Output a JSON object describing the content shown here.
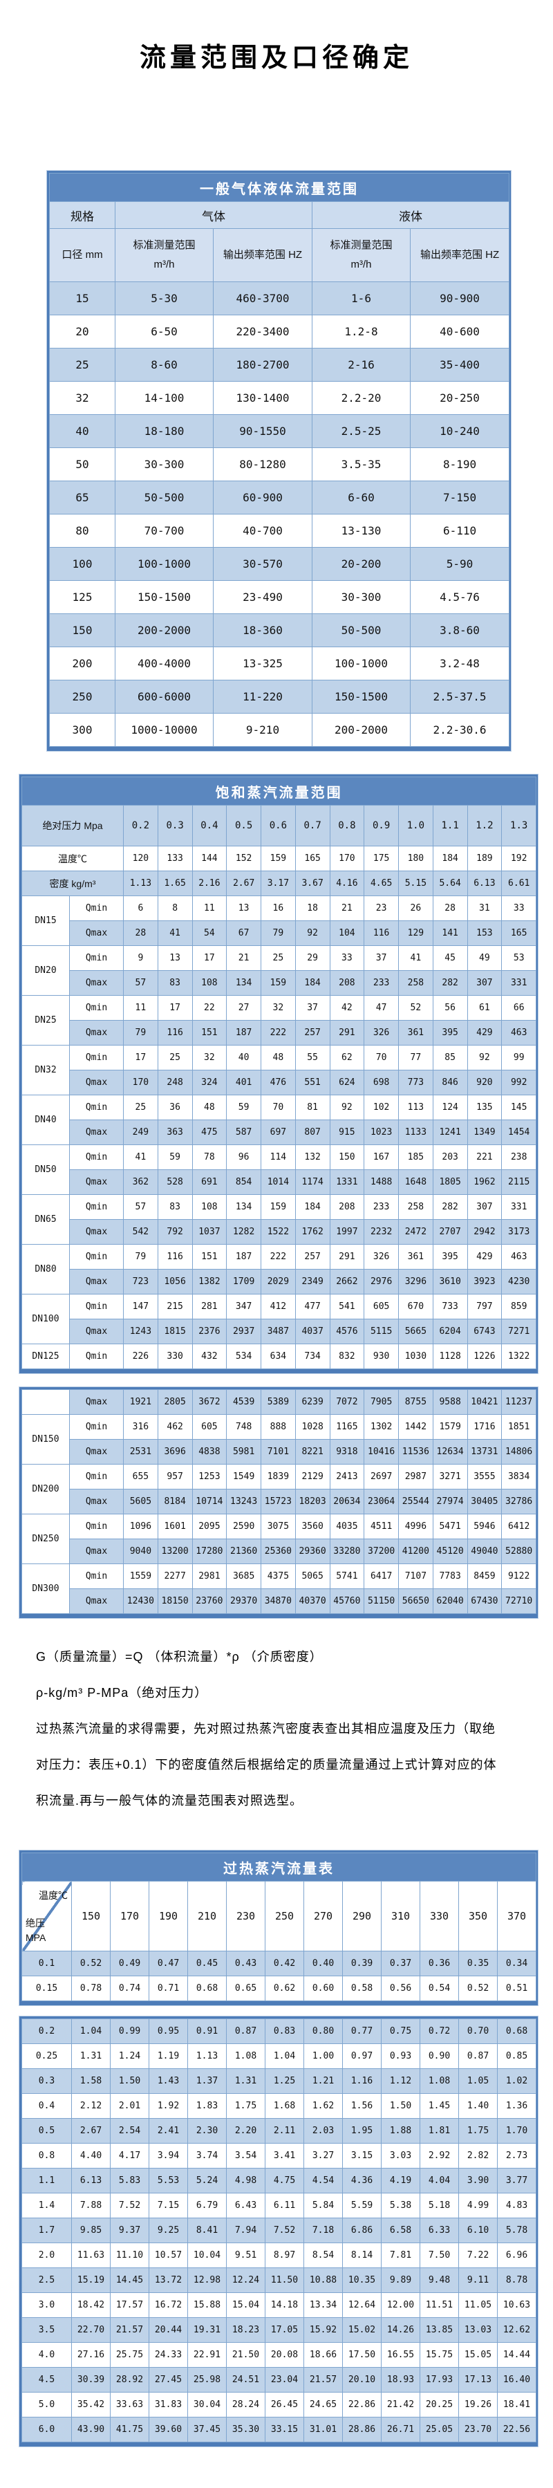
{
  "page_title": "流量范围及口径确定",
  "table1": {
    "title": "一般气体液体流量范围",
    "header": {
      "spec": "规格",
      "gas": "气体",
      "liquid": "液体",
      "diameter": "口径 mm",
      "std_label": "标准测量范围",
      "std_unit": "m³/h",
      "freq_label": "输出频率范围 HZ"
    },
    "rows": [
      [
        "15",
        "5-30",
        "460-3700",
        "1-6",
        "90-900"
      ],
      [
        "20",
        "6-50",
        "220-3400",
        "1.2-8",
        "40-600"
      ],
      [
        "25",
        "8-60",
        "180-2700",
        "2-16",
        "35-400"
      ],
      [
        "32",
        "14-100",
        "130-1400",
        "2.2-20",
        "20-250"
      ],
      [
        "40",
        "18-180",
        "90-1550",
        "2.5-25",
        "10-240"
      ],
      [
        "50",
        "30-300",
        "80-1280",
        "3.5-35",
        "8-190"
      ],
      [
        "65",
        "50-500",
        "60-900",
        "6-60",
        "7-150"
      ],
      [
        "80",
        "70-700",
        "40-700",
        "13-130",
        "6-110"
      ],
      [
        "100",
        "100-1000",
        "30-570",
        "20-200",
        "5-90"
      ],
      [
        "125",
        "150-1500",
        "23-490",
        "30-300",
        "4.5-76"
      ],
      [
        "150",
        "200-2000",
        "18-360",
        "50-500",
        "3.8-60"
      ],
      [
        "200",
        "400-4000",
        "13-325",
        "100-1000",
        "3.2-48"
      ],
      [
        "250",
        "600-6000",
        "11-220",
        "150-1500",
        "2.5-37.5"
      ],
      [
        "300",
        "1000-10000",
        "9-210",
        "200-2000",
        "2.2-30.6"
      ]
    ]
  },
  "table2": {
    "title": "饱和蒸汽流量范围",
    "pressure_label": "绝对压力 Mpa",
    "pressures": [
      "0.2",
      "0.3",
      "0.4",
      "0.5",
      "0.6",
      "0.7",
      "0.8",
      "0.9",
      "1.0",
      "1.1",
      "1.2",
      "1.3"
    ],
    "temp_label": "温度℃",
    "temps": [
      "120",
      "133",
      "144",
      "152",
      "159",
      "165",
      "170",
      "175",
      "180",
      "184",
      "189",
      "192"
    ],
    "density_label": "密度 kg/m³",
    "densities": [
      "1.13",
      "1.65",
      "2.16",
      "2.67",
      "3.17",
      "3.67",
      "4.16",
      "4.65",
      "5.15",
      "5.64",
      "6.13",
      "6.61"
    ],
    "qmin_label": "Qmin",
    "qmax_label": "Qmax",
    "block1": [
      {
        "dn": "DN15",
        "qmin": [
          "6",
          "8",
          "11",
          "13",
          "16",
          "18",
          "21",
          "23",
          "26",
          "28",
          "31",
          "33"
        ],
        "qmax": [
          "28",
          "41",
          "54",
          "67",
          "79",
          "92",
          "104",
          "116",
          "129",
          "141",
          "153",
          "165"
        ]
      },
      {
        "dn": "DN20",
        "qmin": [
          "9",
          "13",
          "17",
          "21",
          "25",
          "29",
          "33",
          "37",
          "41",
          "45",
          "49",
          "53"
        ],
        "qmax": [
          "57",
          "83",
          "108",
          "134",
          "159",
          "184",
          "208",
          "233",
          "258",
          "282",
          "307",
          "331"
        ]
      },
      {
        "dn": "DN25",
        "qmin": [
          "11",
          "17",
          "22",
          "27",
          "32",
          "37",
          "42",
          "47",
          "52",
          "56",
          "61",
          "66"
        ],
        "qmax": [
          "79",
          "116",
          "151",
          "187",
          "222",
          "257",
          "291",
          "326",
          "361",
          "395",
          "429",
          "463"
        ]
      },
      {
        "dn": "DN32",
        "qmin": [
          "17",
          "25",
          "32",
          "40",
          "48",
          "55",
          "62",
          "70",
          "77",
          "85",
          "92",
          "99"
        ],
        "qmax": [
          "170",
          "248",
          "324",
          "401",
          "476",
          "551",
          "624",
          "698",
          "773",
          "846",
          "920",
          "992"
        ]
      },
      {
        "dn": "DN40",
        "qmin": [
          "25",
          "36",
          "48",
          "59",
          "70",
          "81",
          "92",
          "102",
          "113",
          "124",
          "135",
          "145"
        ],
        "qmax": [
          "249",
          "363",
          "475",
          "587",
          "697",
          "807",
          "915",
          "1023",
          "1133",
          "1241",
          "1349",
          "1454"
        ]
      },
      {
        "dn": "DN50",
        "qmin": [
          "41",
          "59",
          "78",
          "96",
          "114",
          "132",
          "150",
          "167",
          "185",
          "203",
          "221",
          "238"
        ],
        "qmax": [
          "362",
          "528",
          "691",
          "854",
          "1014",
          "1174",
          "1331",
          "1488",
          "1648",
          "1805",
          "1962",
          "2115"
        ]
      },
      {
        "dn": "DN65",
        "qmin": [
          "57",
          "83",
          "108",
          "134",
          "159",
          "184",
          "208",
          "233",
          "258",
          "282",
          "307",
          "331"
        ],
        "qmax": [
          "542",
          "792",
          "1037",
          "1282",
          "1522",
          "1762",
          "1997",
          "2232",
          "2472",
          "2707",
          "2942",
          "3173"
        ]
      },
      {
        "dn": "DN80",
        "qmin": [
          "79",
          "116",
          "151",
          "187",
          "222",
          "257",
          "291",
          "326",
          "361",
          "395",
          "429",
          "463"
        ],
        "qmax": [
          "723",
          "1056",
          "1382",
          "1709",
          "2029",
          "2349",
          "2662",
          "2976",
          "3296",
          "3610",
          "3923",
          "4230"
        ]
      },
      {
        "dn": "DN100",
        "qmin": [
          "147",
          "215",
          "281",
          "347",
          "412",
          "477",
          "541",
          "605",
          "670",
          "733",
          "797",
          "859"
        ],
        "qmax": [
          "1243",
          "1815",
          "2376",
          "2937",
          "3487",
          "4037",
          "4576",
          "5115",
          "5665",
          "6204",
          "6743",
          "7271"
        ]
      },
      {
        "dn": "DN125",
        "qmin": [
          "226",
          "330",
          "432",
          "534",
          "634",
          "734",
          "832",
          "930",
          "1030",
          "1128",
          "1226",
          "1322"
        ]
      }
    ],
    "block2_orphan_qmax": [
      "1921",
      "2805",
      "3672",
      "4539",
      "5389",
      "6239",
      "7072",
      "7905",
      "8755",
      "9588",
      "10421",
      "11237"
    ],
    "block2": [
      {
        "dn": "DN150",
        "qmin": [
          "316",
          "462",
          "605",
          "748",
          "888",
          "1028",
          "1165",
          "1302",
          "1442",
          "1579",
          "1716",
          "1851"
        ],
        "qmax": [
          "2531",
          "3696",
          "4838",
          "5981",
          "7101",
          "8221",
          "9318",
          "10416",
          "11536",
          "12634",
          "13731",
          "14806"
        ]
      },
      {
        "dn": "DN200",
        "qmin": [
          "655",
          "957",
          "1253",
          "1549",
          "1839",
          "2129",
          "2413",
          "2697",
          "2987",
          "3271",
          "3555",
          "3834"
        ],
        "qmax": [
          "5605",
          "8184",
          "10714",
          "13243",
          "15723",
          "18203",
          "20634",
          "23064",
          "25544",
          "27974",
          "30405",
          "32786"
        ]
      },
      {
        "dn": "DN250",
        "qmin": [
          "1096",
          "1601",
          "2095",
          "2590",
          "3075",
          "3560",
          "4035",
          "4511",
          "4996",
          "5471",
          "5946",
          "6412"
        ],
        "qmax": [
          "9040",
          "13200",
          "17280",
          "21360",
          "25360",
          "29360",
          "33280",
          "37200",
          "41200",
          "45120",
          "49040",
          "52880"
        ]
      },
      {
        "dn": "DN300",
        "qmin": [
          "1559",
          "2277",
          "2981",
          "3685",
          "4375",
          "5065",
          "5741",
          "6417",
          "7107",
          "7783",
          "8459",
          "9122"
        ],
        "qmax": [
          "12430",
          "18150",
          "23760",
          "29370",
          "34870",
          "40370",
          "45760",
          "51150",
          "56650",
          "62040",
          "67430",
          "72710"
        ]
      }
    ]
  },
  "notes": {
    "formula": "G（质量流量）=Q （体积流量）*ρ （介质密度）",
    "units": "ρ-kg/m³ P-MPa（绝对压力）",
    "line1": "过热蒸汽流量的求得需要，先对照过热蒸汽密度表查出其相应温度及压力（取绝",
    "line2": "对压力：表压+0.1）下的密度值然后根据给定的质量流量通过上式计算对应的体",
    "line3": "积流量.再与一般气体的流量范围表对照选型。"
  },
  "table3": {
    "title": "过热蒸汽流量表",
    "corner_top": "温度℃",
    "corner_bottom1": "绝压",
    "corner_bottom2": "MPA",
    "temps": [
      "150",
      "170",
      "190",
      "210",
      "230",
      "250",
      "270",
      "290",
      "310",
      "330",
      "350",
      "370"
    ],
    "block1": [
      {
        "p": "0.1",
        "v": [
          "0.52",
          "0.49",
          "0.47",
          "0.45",
          "0.43",
          "0.42",
          "0.40",
          "0.39",
          "0.37",
          "0.36",
          "0.35",
          "0.34"
        ]
      },
      {
        "p": "0.15",
        "v": [
          "0.78",
          "0.74",
          "0.71",
          "0.68",
          "0.65",
          "0.62",
          "0.60",
          "0.58",
          "0.56",
          "0.54",
          "0.52",
          "0.51"
        ]
      }
    ],
    "block2": [
      {
        "p": "0.2",
        "v": [
          "1.04",
          "0.99",
          "0.95",
          "0.91",
          "0.87",
          "0.83",
          "0.80",
          "0.77",
          "0.75",
          "0.72",
          "0.70",
          "0.68"
        ]
      },
      {
        "p": "0.25",
        "v": [
          "1.31",
          "1.24",
          "1.19",
          "1.13",
          "1.08",
          "1.04",
          "1.00",
          "0.97",
          "0.93",
          "0.90",
          "0.87",
          "0.85"
        ]
      },
      {
        "p": "0.3",
        "v": [
          "1.58",
          "1.50",
          "1.43",
          "1.37",
          "1.31",
          "1.25",
          "1.21",
          "1.16",
          "1.12",
          "1.08",
          "1.05",
          "1.02"
        ]
      },
      {
        "p": "0.4",
        "v": [
          "2.12",
          "2.01",
          "1.92",
          "1.83",
          "1.75",
          "1.68",
          "1.62",
          "1.56",
          "1.50",
          "1.45",
          "1.40",
          "1.36"
        ]
      },
      {
        "p": "0.5",
        "v": [
          "2.67",
          "2.54",
          "2.41",
          "2.30",
          "2.20",
          "2.11",
          "2.03",
          "1.95",
          "1.88",
          "1.81",
          "1.75",
          "1.70"
        ]
      },
      {
        "p": "0.8",
        "v": [
          "4.40",
          "4.17",
          "3.94",
          "3.74",
          "3.54",
          "3.41",
          "3.27",
          "3.15",
          "3.03",
          "2.92",
          "2.82",
          "2.73"
        ]
      },
      {
        "p": "1.1",
        "v": [
          "6.13",
          "5.83",
          "5.53",
          "5.24",
          "4.98",
          "4.75",
          "4.54",
          "4.36",
          "4.19",
          "4.04",
          "3.90",
          "3.77"
        ]
      },
      {
        "p": "1.4",
        "v": [
          "7.88",
          "7.52",
          "7.15",
          "6.79",
          "6.43",
          "6.11",
          "5.84",
          "5.59",
          "5.38",
          "5.18",
          "4.99",
          "4.83"
        ]
      },
      {
        "p": "1.7",
        "v": [
          "9.85",
          "9.37",
          "9.25",
          "8.41",
          "7.94",
          "7.52",
          "7.18",
          "6.86",
          "6.58",
          "6.33",
          "6.10",
          "5.78"
        ]
      },
      {
        "p": "2.0",
        "v": [
          "11.63",
          "11.10",
          "10.57",
          "10.04",
          "9.51",
          "8.97",
          "8.54",
          "8.14",
          "7.81",
          "7.50",
          "7.22",
          "6.96"
        ]
      },
      {
        "p": "2.5",
        "v": [
          "15.19",
          "14.45",
          "13.72",
          "12.98",
          "12.24",
          "11.50",
          "10.88",
          "10.35",
          "9.89",
          "9.48",
          "9.11",
          "8.78"
        ]
      },
      {
        "p": "3.0",
        "v": [
          "18.42",
          "17.57",
          "16.72",
          "15.88",
          "15.04",
          "14.18",
          "13.34",
          "12.64",
          "12.00",
          "11.51",
          "11.05",
          "10.63"
        ]
      },
      {
        "p": "3.5",
        "v": [
          "22.70",
          "21.57",
          "20.44",
          "19.31",
          "18.23",
          "17.05",
          "15.92",
          "15.02",
          "14.26",
          "13.85",
          "13.03",
          "12.62"
        ]
      },
      {
        "p": "4.0",
        "v": [
          "27.16",
          "25.75",
          "24.33",
          "22.91",
          "21.50",
          "20.08",
          "18.66",
          "17.50",
          "16.55",
          "15.75",
          "15.05",
          "14.44"
        ]
      },
      {
        "p": "4.5",
        "v": [
          "30.39",
          "28.92",
          "27.45",
          "25.98",
          "24.51",
          "23.04",
          "21.57",
          "20.10",
          "18.93",
          "17.93",
          "17.13",
          "16.40"
        ]
      },
      {
        "p": "5.0",
        "v": [
          "35.42",
          "33.63",
          "31.83",
          "30.04",
          "28.24",
          "26.45",
          "24.65",
          "22.86",
          "21.42",
          "20.25",
          "19.26",
          "18.41"
        ]
      },
      {
        "p": "6.0",
        "v": [
          "43.90",
          "41.75",
          "39.60",
          "37.45",
          "35.30",
          "33.15",
          "31.01",
          "28.86",
          "26.71",
          "25.05",
          "23.70",
          "22.56"
        ]
      }
    ]
  }
}
